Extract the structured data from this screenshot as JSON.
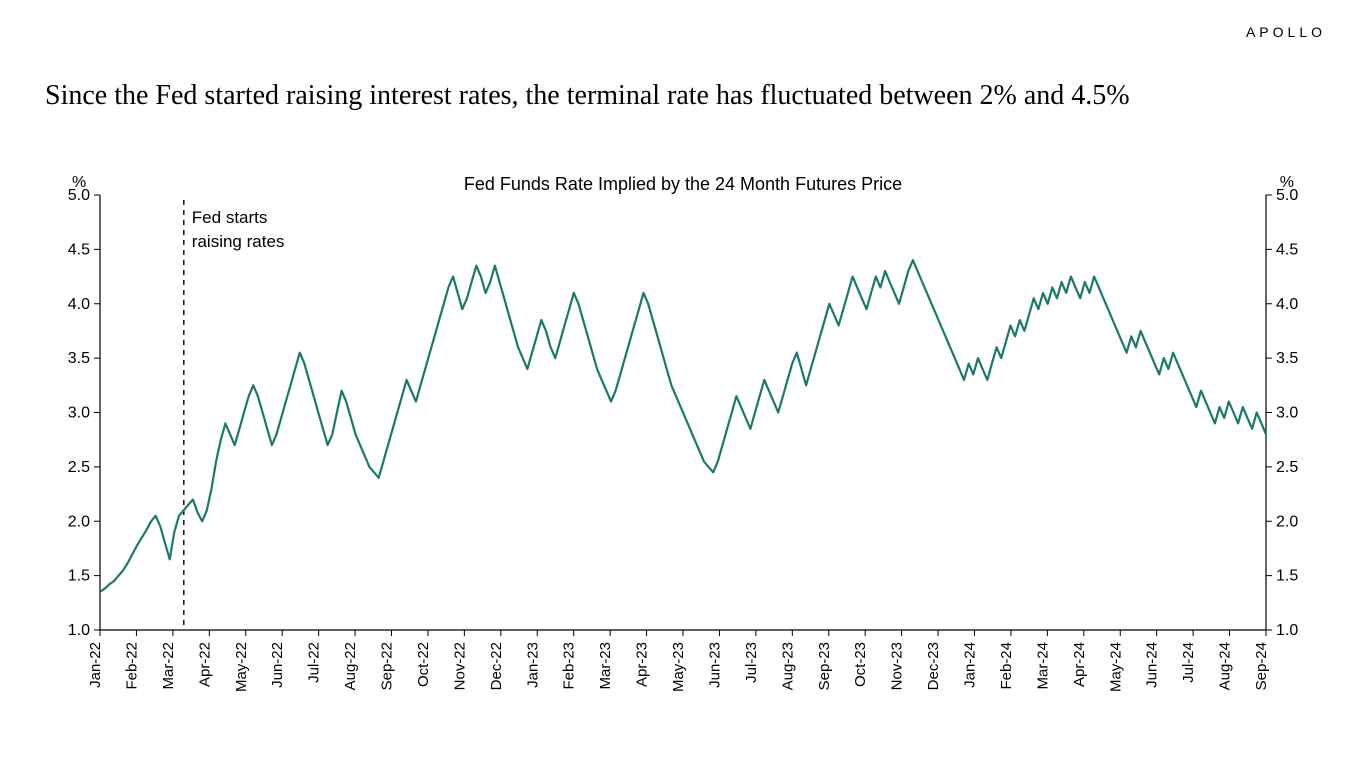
{
  "brand": "APOLLO",
  "title": "Since the Fed started raising interest rates, the terminal rate has fluctuated between 2% and 4.5%",
  "chart": {
    "type": "line",
    "title": "Fed Funds Rate Implied by the 24 Month Futures Price",
    "y_unit": "%",
    "line_color": "#1a7a6a",
    "line_width": 2.2,
    "axis_color": "#000000",
    "background_color": "#ffffff",
    "ylim": [
      1.0,
      5.0
    ],
    "ytick_step": 0.5,
    "yticks": [
      "1.0",
      "1.5",
      "2.0",
      "2.5",
      "3.0",
      "3.5",
      "4.0",
      "4.5",
      "5.0"
    ],
    "x_categories": [
      "Jan-22",
      "Feb-22",
      "Mar-22",
      "Apr-22",
      "May-22",
      "Jun-22",
      "Jul-22",
      "Aug-22",
      "Sep-22",
      "Oct-22",
      "Nov-22",
      "Dec-22",
      "Jan-23",
      "Feb-23",
      "Mar-23",
      "Apr-23",
      "May-23",
      "Jun-23",
      "Jul-23",
      "Aug-23",
      "Sep-23",
      "Oct-23",
      "Nov-23",
      "Dec-23",
      "Jan-24",
      "Feb-24",
      "Mar-24",
      "Apr-24",
      "May-24",
      "Jun-24",
      "Jul-24",
      "Aug-24",
      "Sep-24"
    ],
    "annotation": {
      "label_line1": "Fed starts",
      "label_line2": "raising rates",
      "x_index": 2.3,
      "dash": "5,5",
      "color": "#000000"
    },
    "series": [
      1.35,
      1.38,
      1.42,
      1.45,
      1.5,
      1.55,
      1.62,
      1.7,
      1.78,
      1.85,
      1.92,
      2.0,
      2.05,
      1.95,
      1.8,
      1.65,
      1.9,
      2.05,
      2.1,
      2.15,
      2.2,
      2.08,
      2.0,
      2.1,
      2.3,
      2.55,
      2.75,
      2.9,
      2.8,
      2.7,
      2.85,
      3.0,
      3.15,
      3.25,
      3.15,
      3.0,
      2.85,
      2.7,
      2.8,
      2.95,
      3.1,
      3.25,
      3.4,
      3.55,
      3.45,
      3.3,
      3.15,
      3.0,
      2.85,
      2.7,
      2.8,
      3.0,
      3.2,
      3.1,
      2.95,
      2.8,
      2.7,
      2.6,
      2.5,
      2.45,
      2.4,
      2.55,
      2.7,
      2.85,
      3.0,
      3.15,
      3.3,
      3.2,
      3.1,
      3.25,
      3.4,
      3.55,
      3.7,
      3.85,
      4.0,
      4.15,
      4.25,
      4.1,
      3.95,
      4.05,
      4.2,
      4.35,
      4.25,
      4.1,
      4.2,
      4.35,
      4.2,
      4.05,
      3.9,
      3.75,
      3.6,
      3.5,
      3.4,
      3.55,
      3.7,
      3.85,
      3.75,
      3.6,
      3.5,
      3.65,
      3.8,
      3.95,
      4.1,
      4.0,
      3.85,
      3.7,
      3.55,
      3.4,
      3.3,
      3.2,
      3.1,
      3.2,
      3.35,
      3.5,
      3.65,
      3.8,
      3.95,
      4.1,
      4.0,
      3.85,
      3.7,
      3.55,
      3.4,
      3.25,
      3.15,
      3.05,
      2.95,
      2.85,
      2.75,
      2.65,
      2.55,
      2.5,
      2.45,
      2.55,
      2.7,
      2.85,
      3.0,
      3.15,
      3.05,
      2.95,
      2.85,
      3.0,
      3.15,
      3.3,
      3.2,
      3.1,
      3.0,
      3.15,
      3.3,
      3.45,
      3.55,
      3.4,
      3.25,
      3.4,
      3.55,
      3.7,
      3.85,
      4.0,
      3.9,
      3.8,
      3.95,
      4.1,
      4.25,
      4.15,
      4.05,
      3.95,
      4.1,
      4.25,
      4.15,
      4.3,
      4.2,
      4.1,
      4.0,
      4.15,
      4.3,
      4.4,
      4.3,
      4.2,
      4.1,
      4.0,
      3.9,
      3.8,
      3.7,
      3.6,
      3.5,
      3.4,
      3.3,
      3.45,
      3.35,
      3.5,
      3.4,
      3.3,
      3.45,
      3.6,
      3.5,
      3.65,
      3.8,
      3.7,
      3.85,
      3.75,
      3.9,
      4.05,
      3.95,
      4.1,
      4.0,
      4.15,
      4.05,
      4.2,
      4.1,
      4.25,
      4.15,
      4.05,
      4.2,
      4.1,
      4.25,
      4.15,
      4.05,
      3.95,
      3.85,
      3.75,
      3.65,
      3.55,
      3.7,
      3.6,
      3.75,
      3.65,
      3.55,
      3.45,
      3.35,
      3.5,
      3.4,
      3.55,
      3.45,
      3.35,
      3.25,
      3.15,
      3.05,
      3.2,
      3.1,
      3.0,
      2.9,
      3.05,
      2.95,
      3.1,
      3.0,
      2.9,
      3.05,
      2.95,
      2.85,
      3.0,
      2.9,
      2.8
    ]
  }
}
